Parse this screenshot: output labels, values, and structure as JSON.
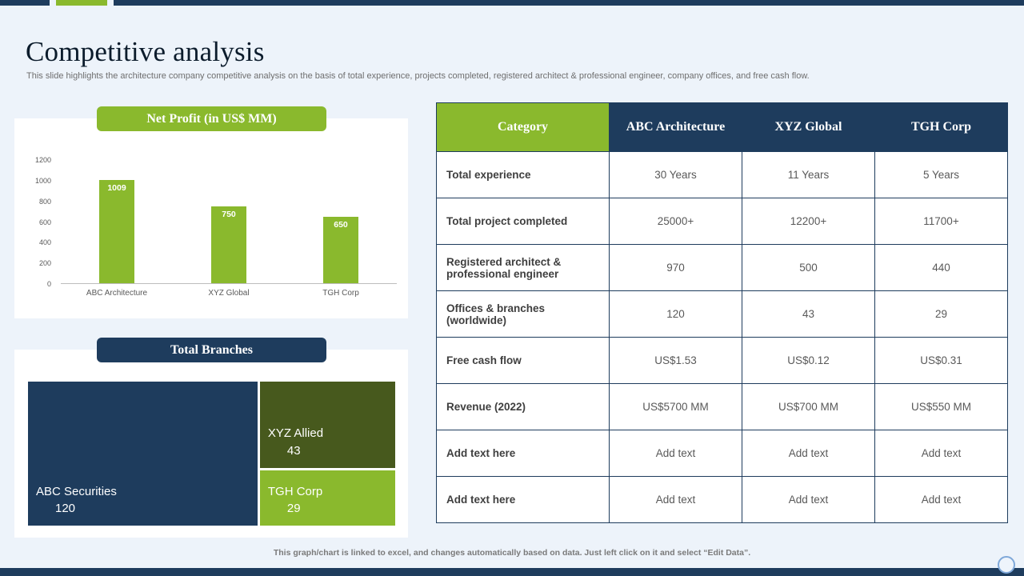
{
  "header": {
    "title": "Competitive analysis",
    "subtitle": "This slide highlights the architecture company competitive analysis on the basis of total experience, projects completed, registered architect & professional engineer, company offices, and free cash flow."
  },
  "colors": {
    "navy": "#1e3c5d",
    "green": "#8ab92d",
    "olive": "#47591d",
    "background": "#edf3fa",
    "accent_circle": "#7fa8d9"
  },
  "chart_data": [
    {
      "type": "bar",
      "title": "Net Profit (in  US$ MM)",
      "categories": [
        "ABC  Architecture",
        "XYZ Global",
        "TGH Corp"
      ],
      "values": [
        1009,
        750,
        650
      ],
      "ylim": [
        0,
        1200
      ],
      "yticks": [
        0,
        200,
        400,
        600,
        800,
        1000,
        1200
      ],
      "bar_color": "#8ab92d",
      "legend": "none",
      "grid": false
    },
    {
      "type": "treemap",
      "title": "Total Branches",
      "items": [
        {
          "label": "ABC Securities",
          "value": 120,
          "color": "#1e3c5d"
        },
        {
          "label": "XYZ Allied",
          "value": 43,
          "color": "#47591d"
        },
        {
          "label": "TGH Corp",
          "value": 29,
          "color": "#8ab92d"
        }
      ]
    }
  ],
  "table": {
    "headers": [
      "Category",
      "ABC Architecture",
      "XYZ  Global",
      "TGH Corp"
    ],
    "rows": [
      {
        "label": "Total experience",
        "values": [
          "30 Years",
          "11 Years",
          "5 Years"
        ]
      },
      {
        "label": "Total project completed",
        "values": [
          "25000+",
          "12200+",
          "11700+"
        ]
      },
      {
        "label": "Registered architect & professional engineer",
        "values": [
          "970",
          "500",
          "440"
        ]
      },
      {
        "label": "Offices & branches (worldwide)",
        "values": [
          "120",
          "43",
          "29"
        ]
      },
      {
        "label": "Free cash flow",
        "values": [
          "US$1.53",
          "US$0.12",
          "US$0.31"
        ]
      },
      {
        "label": "Revenue (2022)",
        "values": [
          "US$5700 MM",
          "US$700 MM",
          "US$550 MM"
        ]
      },
      {
        "label": "Add text here",
        "values": [
          "Add text",
          "Add text",
          "Add text"
        ]
      },
      {
        "label": "Add text here",
        "values": [
          "Add text",
          "Add text",
          "Add text"
        ]
      }
    ]
  },
  "footer": {
    "note": "This graph/chart is linked to excel,  and changes automatically based on data. Just left click on it and select “Edit Data”."
  }
}
